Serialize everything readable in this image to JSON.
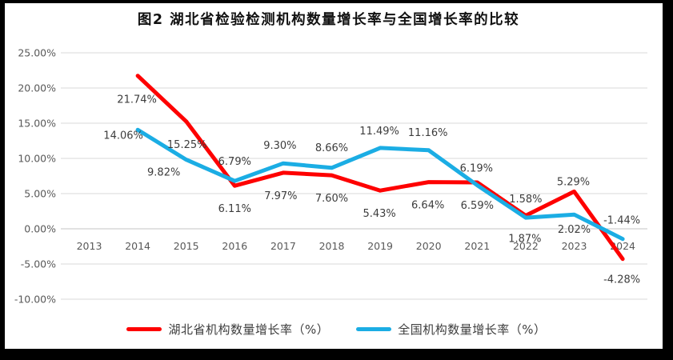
{
  "title": "图2  湖北省检验检测机构数量增长率与全国增长率的比较",
  "chart_data": {
    "type": "line",
    "title": "图2  湖北省检验检测机构数量增长率与全国增长率的比较",
    "x_categories": [
      "2013",
      "2014",
      "2015",
      "2016",
      "2017",
      "2018",
      "2019",
      "2020",
      "2021",
      "2022",
      "2023",
      "2024"
    ],
    "y_ticks": [
      "25.00%",
      "20.00%",
      "15.00%",
      "10.00%",
      "5.00%",
      "0.00%",
      "-5.00%",
      "-10.00%"
    ],
    "ylim": [
      -10,
      25
    ],
    "ytick_step": 5,
    "grid": true,
    "legend_position": "bottom",
    "series": [
      {
        "name": "湖北省机构数量增长率（%）",
        "color": "#fe0000",
        "start_index": 1,
        "values": [
          21.74,
          15.25,
          6.11,
          7.97,
          7.6,
          5.43,
          6.64,
          6.59,
          1.87,
          5.29,
          -4.28
        ],
        "labels": [
          "21.74%",
          "15.25%",
          "6.11%",
          "7.97%",
          "7.60%",
          "5.43%",
          "6.64%",
          "6.59%",
          "1.87%",
          "5.29%",
          "-4.28%"
        ]
      },
      {
        "name": "全国机构数量增长率（%）",
        "color": "#1bade4",
        "start_index": 1,
        "values": [
          14.06,
          9.82,
          6.79,
          9.3,
          8.66,
          11.49,
          11.16,
          6.19,
          1.58,
          2.02,
          -1.44
        ],
        "labels": [
          "14.06%",
          "9.82%",
          "6.79%",
          "9.30%",
          "8.66%",
          "11.49%",
          "11.16%",
          "6.19%",
          "1.58%",
          "2.02%",
          "-1.44%"
        ]
      }
    ]
  },
  "colors": {
    "hubei_line": "#fe0000",
    "national_line": "#1bade4",
    "gridline": "#d9d9d9",
    "zero_line": "#c6c6c6",
    "axis_text": "#595959",
    "data_label": "#3d3d3d",
    "frame": "#000000",
    "background": "#ffffff"
  }
}
